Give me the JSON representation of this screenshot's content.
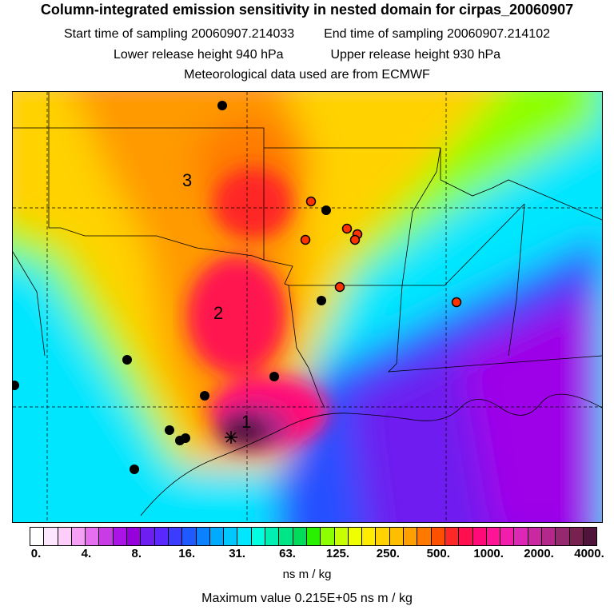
{
  "header": {
    "title": "Column-integrated emission sensitivity in nested domain for cirpas_20060907",
    "start_sampling": "Start time of sampling 20060907.214033",
    "end_sampling": "End time of sampling 20060907.214102",
    "lower_release": "Lower release height  940 hPa",
    "upper_release": "Upper release height  930 hPa",
    "met_data": "Meteorological data used are from ECMWF"
  },
  "map": {
    "labels": [
      "1",
      "2",
      "3"
    ],
    "colors": {
      "low": "#00e6ff",
      "mid": "#ffc800",
      "high": "#ff0f5a",
      "max": "#50143c",
      "ocean": "#6e1ef0"
    }
  },
  "legend": {
    "tick_labels": [
      "0.",
      "4.",
      "8.",
      "16.",
      "31.",
      "63.",
      "125.",
      "250.",
      "500.",
      "1000.",
      "2000.",
      "4000."
    ],
    "segment_colors": [
      "#ffffff",
      "#ffe6ff",
      "#ffcdfa",
      "#f5a0f5",
      "#e66ef0",
      "#c83ce6",
      "#aa14e6",
      "#9600dc",
      "#6e1ef0",
      "#5a28ff",
      "#3c3cff",
      "#1e5aff",
      "#0a82ff",
      "#00aaff",
      "#00c8ff",
      "#00e6ff",
      "#00ffe1",
      "#00f0b4",
      "#00e687",
      "#00dc5a",
      "#28f000",
      "#8cff00",
      "#c8ff00",
      "#f0ff00",
      "#ffeb00",
      "#ffd200",
      "#ffbe00",
      "#ffa000",
      "#ff7800",
      "#ff5000",
      "#ff2828",
      "#ff0f50",
      "#ff0a78",
      "#ff1496",
      "#f01eaa",
      "#dc28b4",
      "#c828a0",
      "#b4288c",
      "#962870",
      "#782050",
      "#50143c"
    ],
    "unit": "ns m / kg",
    "max_value": "Maximum value  0.215E+05 ns m / kg"
  }
}
